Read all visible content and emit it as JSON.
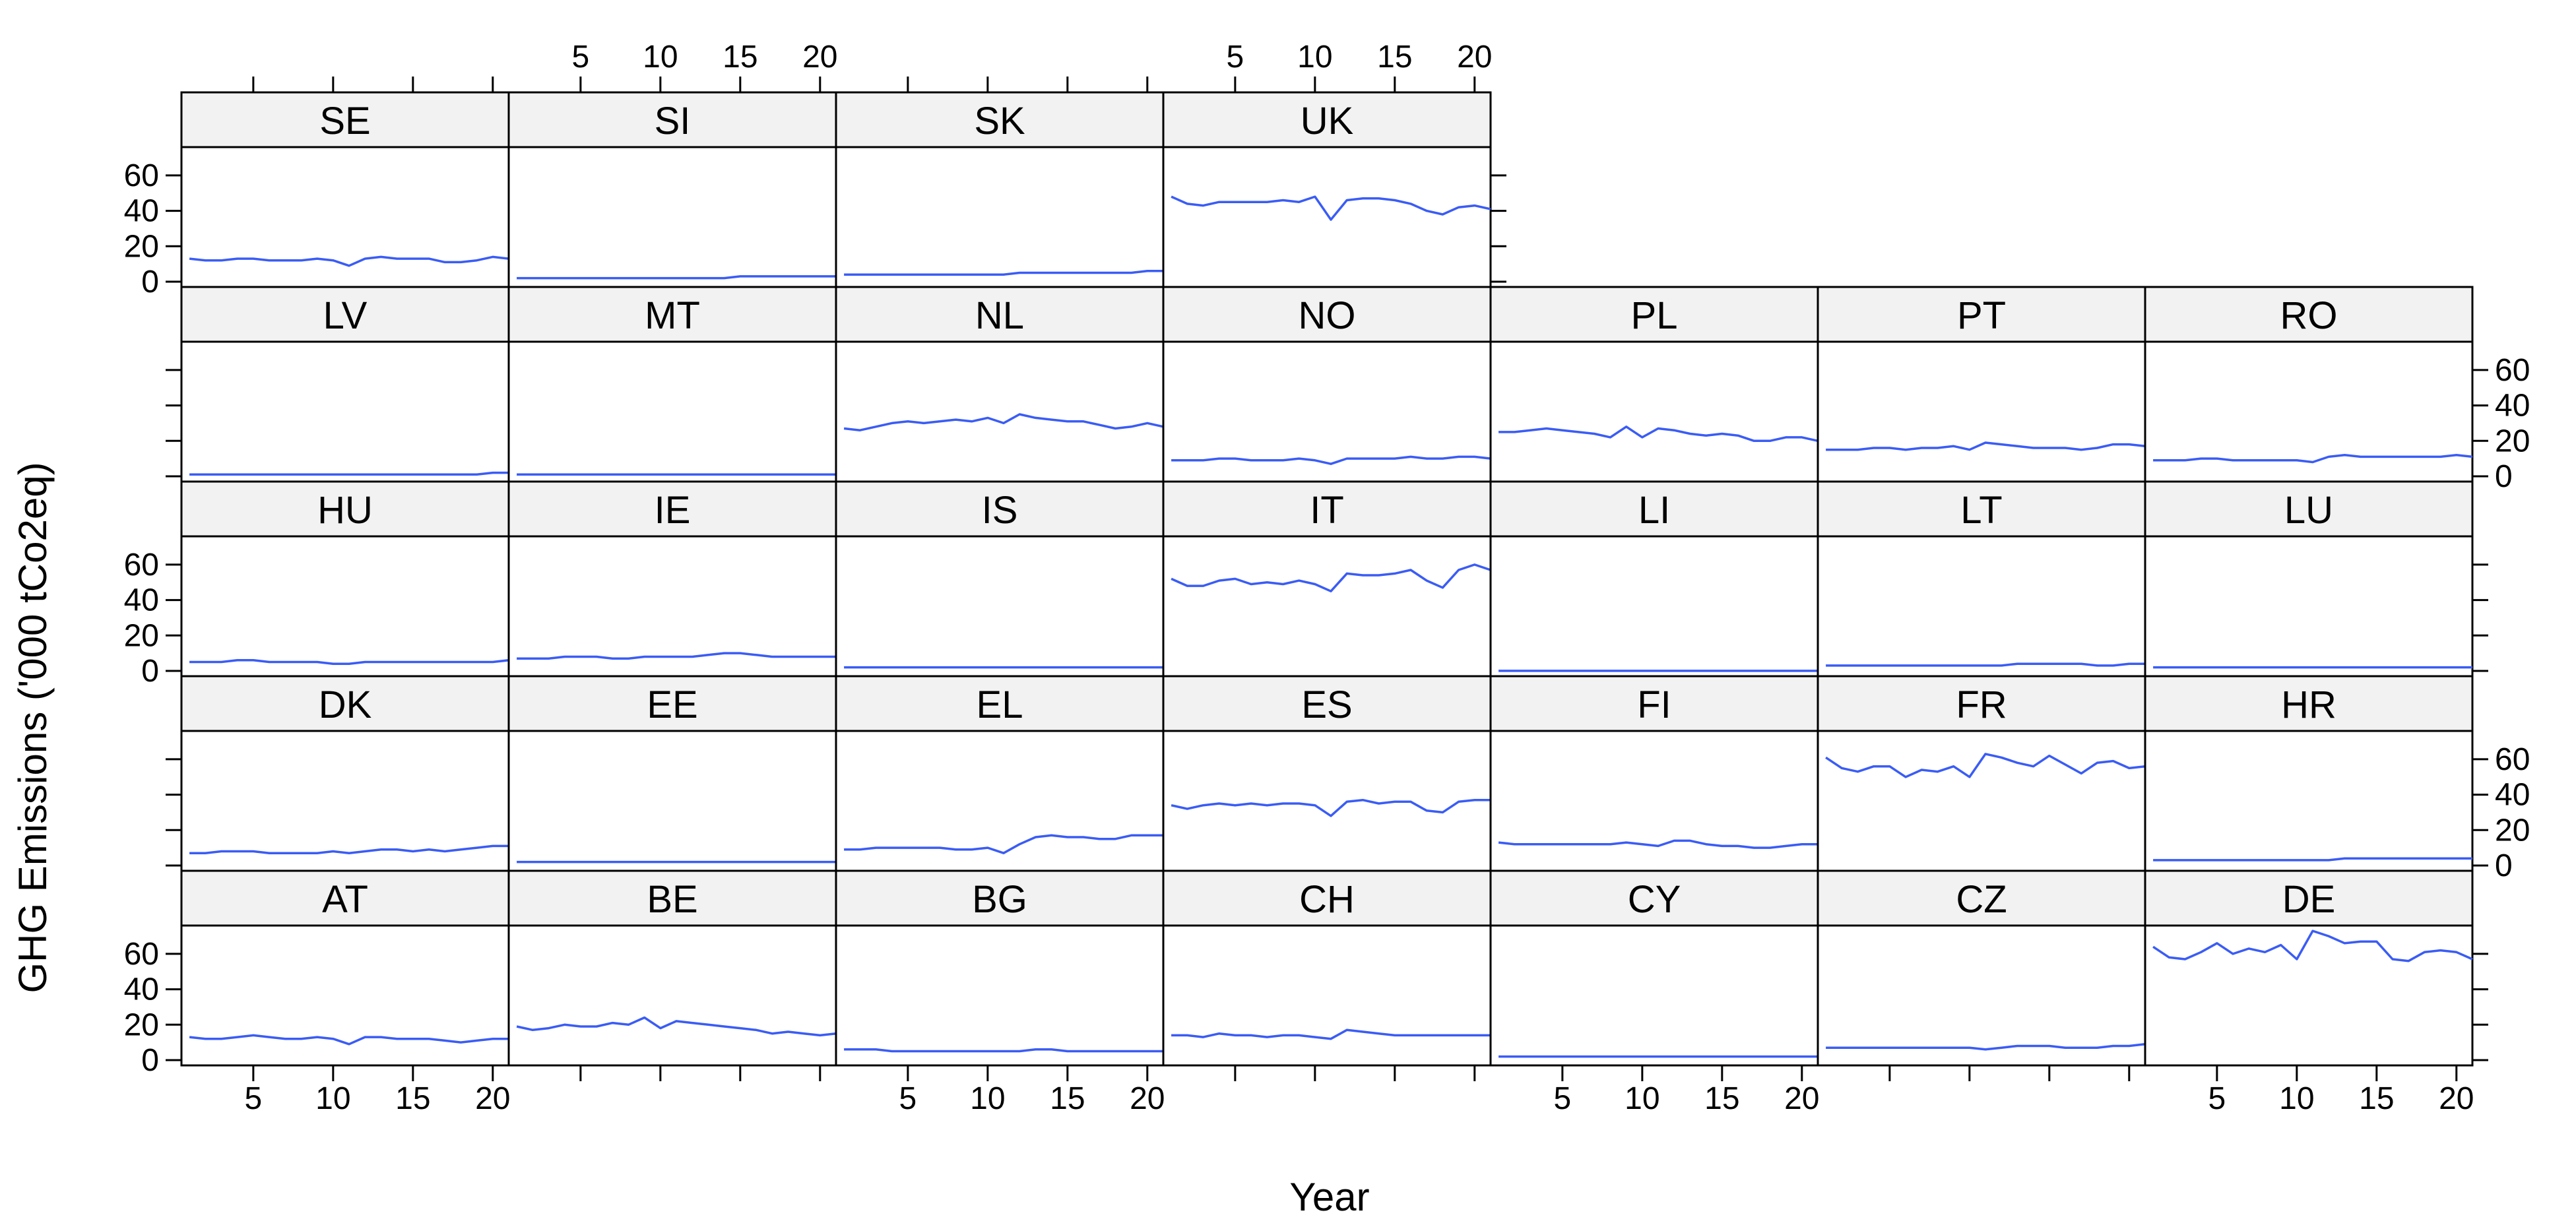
{
  "chart_data": {
    "type": "line",
    "layout": "lattice trellis, 7 columns x 5 rows, bottom-to-top ordering",
    "xlabel": "Year",
    "ylabel": "GHG Emissions ('000 tCo2eq)",
    "xlim": [
      0.5,
      21
    ],
    "ylim": [
      -3,
      76
    ],
    "x_ticks": [
      5,
      10,
      15,
      20
    ],
    "y_ticks": [
      0,
      20,
      40,
      60
    ],
    "line_color": "#3a5cf5",
    "strip_color": "#f2f2f2",
    "x": [
      1,
      2,
      3,
      4,
      5,
      6,
      7,
      8,
      9,
      10,
      11,
      12,
      13,
      14,
      15,
      16,
      17,
      18,
      19,
      20,
      21
    ],
    "panels": [
      {
        "name": "AT",
        "row": 0,
        "col": 0,
        "values": [
          13,
          12,
          12,
          13,
          14,
          13,
          12,
          12,
          13,
          12,
          9,
          13,
          13,
          12,
          12,
          12,
          11,
          10,
          11,
          12,
          12
        ]
      },
      {
        "name": "BE",
        "row": 0,
        "col": 1,
        "values": [
          19,
          17,
          18,
          20,
          19,
          19,
          21,
          20,
          24,
          18,
          22,
          21,
          20,
          19,
          18,
          17,
          15,
          16,
          15,
          14,
          15
        ]
      },
      {
        "name": "BG",
        "row": 0,
        "col": 2,
        "values": [
          6,
          6,
          6,
          5,
          5,
          5,
          5,
          5,
          5,
          5,
          5,
          5,
          6,
          6,
          5,
          5,
          5,
          5,
          5,
          5,
          5
        ]
      },
      {
        "name": "CH",
        "row": 0,
        "col": 3,
        "values": [
          14,
          14,
          13,
          15,
          14,
          14,
          13,
          14,
          14,
          13,
          12,
          17,
          16,
          15,
          14,
          14,
          14,
          14,
          14,
          14,
          14
        ]
      },
      {
        "name": "CY",
        "row": 0,
        "col": 4,
        "values": [
          2,
          2,
          2,
          2,
          2,
          2,
          2,
          2,
          2,
          2,
          2,
          2,
          2,
          2,
          2,
          2,
          2,
          2,
          2,
          2,
          2
        ]
      },
      {
        "name": "CZ",
        "row": 0,
        "col": 5,
        "values": [
          7,
          7,
          7,
          7,
          7,
          7,
          7,
          7,
          7,
          7,
          6,
          7,
          8,
          8,
          8,
          7,
          7,
          7,
          8,
          8,
          9
        ]
      },
      {
        "name": "DE",
        "row": 0,
        "col": 6,
        "values": [
          64,
          58,
          57,
          61,
          66,
          60,
          63,
          61,
          65,
          57,
          73,
          70,
          66,
          67,
          67,
          57,
          56,
          61,
          62,
          61,
          57
        ]
      },
      {
        "name": "DK",
        "row": 1,
        "col": 0,
        "values": [
          7,
          7,
          8,
          8,
          8,
          7,
          7,
          7,
          7,
          8,
          7,
          8,
          9,
          9,
          8,
          9,
          8,
          9,
          10,
          11,
          11
        ]
      },
      {
        "name": "EE",
        "row": 1,
        "col": 1,
        "values": [
          2,
          2,
          2,
          2,
          2,
          2,
          2,
          2,
          2,
          2,
          2,
          2,
          2,
          2,
          2,
          2,
          2,
          2,
          2,
          2,
          2
        ]
      },
      {
        "name": "EL",
        "row": 1,
        "col": 2,
        "values": [
          9,
          9,
          10,
          10,
          10,
          10,
          10,
          9,
          9,
          10,
          7,
          12,
          16,
          17,
          16,
          16,
          15,
          15,
          17,
          17,
          17
        ]
      },
      {
        "name": "ES",
        "row": 1,
        "col": 3,
        "values": [
          34,
          32,
          34,
          35,
          34,
          35,
          34,
          35,
          35,
          34,
          28,
          36,
          37,
          35,
          36,
          36,
          31,
          30,
          36,
          37,
          37
        ]
      },
      {
        "name": "FI",
        "row": 1,
        "col": 4,
        "values": [
          13,
          12,
          12,
          12,
          12,
          12,
          12,
          12,
          13,
          12,
          11,
          14,
          14,
          12,
          11,
          11,
          10,
          10,
          11,
          12,
          12
        ]
      },
      {
        "name": "FR",
        "row": 1,
        "col": 5,
        "values": [
          61,
          55,
          53,
          56,
          56,
          50,
          54,
          53,
          56,
          50,
          63,
          61,
          58,
          56,
          62,
          57,
          52,
          58,
          59,
          55,
          56
        ]
      },
      {
        "name": "HR",
        "row": 1,
        "col": 6,
        "values": [
          3,
          3,
          3,
          3,
          3,
          3,
          3,
          3,
          3,
          3,
          3,
          3,
          4,
          4,
          4,
          4,
          4,
          4,
          4,
          4,
          4
        ]
      },
      {
        "name": "HU",
        "row": 2,
        "col": 0,
        "values": [
          5,
          5,
          5,
          6,
          6,
          5,
          5,
          5,
          5,
          4,
          4,
          5,
          5,
          5,
          5,
          5,
          5,
          5,
          5,
          5,
          6
        ]
      },
      {
        "name": "IE",
        "row": 2,
        "col": 1,
        "values": [
          7,
          7,
          7,
          8,
          8,
          8,
          7,
          7,
          8,
          8,
          8,
          8,
          9,
          10,
          10,
          9,
          8,
          8,
          8,
          8,
          8
        ]
      },
      {
        "name": "IS",
        "row": 2,
        "col": 2,
        "values": [
          2,
          2,
          2,
          2,
          2,
          2,
          2,
          2,
          2,
          2,
          2,
          2,
          2,
          2,
          2,
          2,
          2,
          2,
          2,
          2,
          2
        ]
      },
      {
        "name": "IT",
        "row": 2,
        "col": 3,
        "values": [
          52,
          48,
          48,
          51,
          52,
          49,
          50,
          49,
          51,
          49,
          45,
          55,
          54,
          54,
          55,
          57,
          51,
          47,
          57,
          60,
          57
        ]
      },
      {
        "name": "LI",
        "row": 2,
        "col": 4,
        "values": [
          0,
          0,
          0,
          0,
          0,
          0,
          0,
          0,
          0,
          0,
          0,
          0,
          0,
          0,
          0,
          0,
          0,
          0,
          0,
          0,
          0
        ]
      },
      {
        "name": "LT",
        "row": 2,
        "col": 5,
        "values": [
          3,
          3,
          3,
          3,
          3,
          3,
          3,
          3,
          3,
          3,
          3,
          3,
          4,
          4,
          4,
          4,
          4,
          3,
          3,
          4,
          4
        ]
      },
      {
        "name": "LU",
        "row": 2,
        "col": 6,
        "values": [
          2,
          2,
          2,
          2,
          2,
          2,
          2,
          2,
          2,
          2,
          2,
          2,
          2,
          2,
          2,
          2,
          2,
          2,
          2,
          2,
          2
        ]
      },
      {
        "name": "LV",
        "row": 3,
        "col": 0,
        "values": [
          1,
          1,
          1,
          1,
          1,
          1,
          1,
          1,
          1,
          1,
          1,
          1,
          1,
          1,
          1,
          1,
          1,
          1,
          1,
          2,
          2
        ]
      },
      {
        "name": "MT",
        "row": 3,
        "col": 1,
        "values": [
          1,
          1,
          1,
          1,
          1,
          1,
          1,
          1,
          1,
          1,
          1,
          1,
          1,
          1,
          1,
          1,
          1,
          1,
          1,
          1,
          1
        ]
      },
      {
        "name": "NL",
        "row": 3,
        "col": 2,
        "values": [
          27,
          26,
          28,
          30,
          31,
          30,
          31,
          32,
          31,
          33,
          30,
          35,
          33,
          32,
          31,
          31,
          29,
          27,
          28,
          30,
          28
        ]
      },
      {
        "name": "NO",
        "row": 3,
        "col": 3,
        "values": [
          9,
          9,
          9,
          10,
          10,
          9,
          9,
          9,
          10,
          9,
          7,
          10,
          10,
          10,
          10,
          11,
          10,
          10,
          11,
          11,
          10
        ]
      },
      {
        "name": "PL",
        "row": 3,
        "col": 4,
        "values": [
          25,
          25,
          26,
          27,
          26,
          25,
          24,
          22,
          28,
          22,
          27,
          26,
          24,
          23,
          24,
          23,
          20,
          20,
          22,
          22,
          20
        ]
      },
      {
        "name": "PT",
        "row": 3,
        "col": 5,
        "values": [
          15,
          15,
          15,
          16,
          16,
          15,
          16,
          16,
          17,
          15,
          19,
          18,
          17,
          16,
          16,
          16,
          15,
          16,
          18,
          18,
          17
        ]
      },
      {
        "name": "RO",
        "row": 3,
        "col": 6,
        "values": [
          9,
          9,
          9,
          10,
          10,
          9,
          9,
          9,
          9,
          9,
          8,
          11,
          12,
          11,
          11,
          11,
          11,
          11,
          11,
          12,
          11
        ]
      },
      {
        "name": "SE",
        "row": 4,
        "col": 0,
        "values": [
          13,
          12,
          12,
          13,
          13,
          12,
          12,
          12,
          13,
          12,
          9,
          13,
          14,
          13,
          13,
          13,
          11,
          11,
          12,
          14,
          13
        ]
      },
      {
        "name": "SI",
        "row": 4,
        "col": 1,
        "values": [
          2,
          2,
          2,
          2,
          2,
          2,
          2,
          2,
          2,
          2,
          2,
          2,
          2,
          2,
          3,
          3,
          3,
          3,
          3,
          3,
          3
        ]
      },
      {
        "name": "SK",
        "row": 4,
        "col": 2,
        "values": [
          4,
          4,
          4,
          4,
          4,
          4,
          4,
          4,
          4,
          4,
          4,
          5,
          5,
          5,
          5,
          5,
          5,
          5,
          5,
          6,
          6
        ]
      },
      {
        "name": "UK",
        "row": 4,
        "col": 3,
        "values": [
          48,
          44,
          43,
          45,
          45,
          45,
          45,
          46,
          45,
          48,
          35,
          46,
          47,
          47,
          46,
          44,
          40,
          38,
          42,
          43,
          41
        ]
      }
    ]
  }
}
